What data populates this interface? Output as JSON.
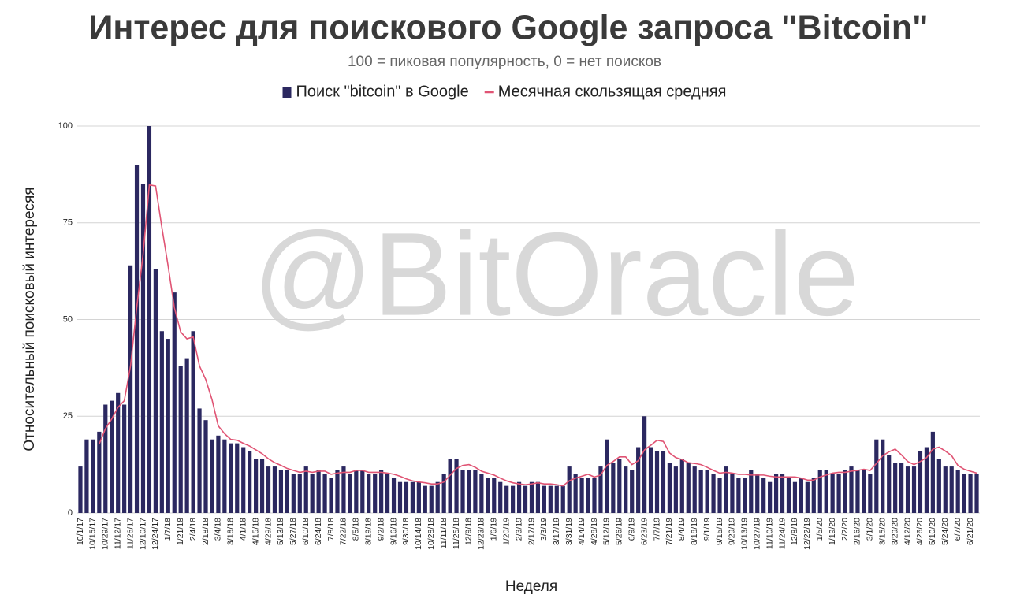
{
  "chart_data": {
    "type": "bar",
    "title": "Интерес для поискового Google запроса \"Bitcoin\"",
    "subtitle": "100 = пиковая популярность, 0 = нет поисков",
    "watermark": "@BitOracle",
    "x_label": "Неделя",
    "y_label": "Относительный поисковый интересяя",
    "ylim": [
      0,
      100
    ],
    "yticks": [
      0,
      25,
      50,
      75,
      100
    ],
    "grid": true,
    "legend": "top",
    "categories": [
      "10/1/17",
      null,
      "10/15/17",
      null,
      "10/29/17",
      null,
      "11/12/17",
      null,
      "11/26/17",
      null,
      "12/10/17",
      null,
      "12/24/17",
      null,
      "1/7/18",
      null,
      "1/21/18",
      null,
      "2/4/18",
      null,
      "2/18/18",
      null,
      "3/4/18",
      null,
      "3/18/18",
      null,
      "4/1/18",
      null,
      "4/15/18",
      null,
      "4/29/18",
      null,
      "5/13/18",
      null,
      "5/27/18",
      null,
      "6/10/18",
      null,
      "6/24/18",
      null,
      "7/8/18",
      null,
      "7/22/18",
      null,
      "8/5/18",
      null,
      "8/19/18",
      null,
      "9/2/18",
      null,
      "9/16/18",
      null,
      "9/30/18",
      null,
      "10/14/18",
      null,
      "10/28/18",
      null,
      "11/11/18",
      null,
      "11/25/18",
      null,
      "12/9/18",
      null,
      "12/23/18",
      null,
      "1/6/19",
      null,
      "1/20/19",
      null,
      "2/3/19",
      null,
      "2/17/19",
      null,
      "3/3/19",
      null,
      "3/17/19",
      null,
      "3/31/19",
      null,
      "4/14/19",
      null,
      "4/28/19",
      null,
      "5/12/19",
      null,
      "5/26/19",
      null,
      "6/9/19",
      null,
      "6/23/19",
      null,
      "7/7/19",
      null,
      "7/21/19",
      null,
      "8/4/19",
      null,
      "8/18/19",
      null,
      "9/1/19",
      null,
      "9/15/19",
      null,
      "9/29/19",
      null,
      "10/13/19",
      null,
      "10/27/19",
      null,
      "11/10/19",
      null,
      "11/24/19",
      null,
      "12/8/19",
      null,
      "12/22/19",
      null,
      "1/5/20",
      null,
      "1/19/20",
      null,
      "2/2/20",
      null,
      "2/16/20",
      null,
      "3/1/20",
      null,
      "3/15/20",
      null,
      "3/29/20",
      null,
      "4/12/20",
      null,
      "4/26/20",
      null,
      "5/10/20",
      null,
      "5/24/20",
      null,
      "6/7/20",
      null,
      "6/21/20",
      null
    ],
    "series": [
      {
        "name": "Поиск \"bitcoin\" в Google",
        "type": "bar",
        "color": "#2b2860",
        "values": [
          12,
          19,
          19,
          21,
          28,
          29,
          31,
          28,
          64,
          90,
          85,
          100,
          63,
          47,
          45,
          57,
          38,
          40,
          47,
          27,
          24,
          19,
          20,
          19,
          18,
          18,
          17,
          16,
          14,
          14,
          12,
          12,
          11,
          11,
          10,
          10,
          12,
          10,
          11,
          10,
          9,
          11,
          12,
          10,
          11,
          11,
          10,
          10,
          11,
          10,
          9,
          8,
          8,
          8,
          8,
          7,
          7,
          8,
          10,
          14,
          14,
          11,
          11,
          11,
          10,
          9,
          9,
          8,
          7,
          7,
          8,
          7,
          8,
          8,
          7,
          7,
          7,
          7,
          12,
          10,
          9,
          9,
          9,
          12,
          19,
          13,
          14,
          12,
          11,
          17,
          25,
          17,
          16,
          16,
          13,
          12,
          14,
          13,
          12,
          11,
          11,
          10,
          9,
          12,
          10,
          9,
          9,
          11,
          10,
          9,
          8,
          10,
          10,
          9,
          8,
          9,
          8,
          9,
          11,
          11,
          10,
          10,
          11,
          12,
          11,
          11,
          10,
          19,
          19,
          15,
          13,
          13,
          12,
          12,
          16,
          17,
          21,
          14,
          12,
          12,
          11,
          10,
          10,
          10
        ]
      },
      {
        "name": "Месячная скользящая средняя",
        "type": "line",
        "color": "#e05474",
        "values": [
          null,
          null,
          null,
          17.8,
          21.8,
          24.3,
          27.3,
          29,
          38,
          53.3,
          66.8,
          84.8,
          84.5,
          73.8,
          63.8,
          53,
          46.8,
          45,
          45.5,
          38,
          34.5,
          29.3,
          22.5,
          20.5,
          19,
          18.8,
          18,
          17.3,
          16.3,
          15.3,
          14,
          13,
          12.3,
          11.5,
          11,
          10.5,
          10.8,
          10.5,
          10.8,
          10.8,
          10,
          10.3,
          10.5,
          10.5,
          11,
          11,
          10.5,
          10.5,
          10.5,
          10.3,
          10,
          9.5,
          8.8,
          8.3,
          8,
          7.8,
          7.5,
          7.5,
          8,
          9.8,
          11.5,
          12.3,
          12.5,
          11.8,
          10.8,
          10.3,
          9.8,
          9,
          8.3,
          7.8,
          7.5,
          7.3,
          7.5,
          7.8,
          7.5,
          7.5,
          7.3,
          7,
          8.3,
          9,
          9.5,
          10,
          9.3,
          9.8,
          12.3,
          13.3,
          14.5,
          14.5,
          12.5,
          13.5,
          16.3,
          17.5,
          18.8,
          18.5,
          15.5,
          14.3,
          13.8,
          13,
          12.8,
          12.5,
          11.8,
          11,
          10.3,
          10.5,
          10.3,
          10,
          10,
          9.8,
          9.8,
          9.8,
          9.5,
          9.3,
          9.3,
          9.3,
          9.3,
          9,
          8.5,
          8.5,
          9.3,
          9.8,
          10.3,
          10.5,
          10.5,
          10.8,
          11,
          11.3,
          11,
          12.8,
          14.8,
          15.8,
          16.5,
          15,
          13.3,
          12.5,
          13.3,
          14.3,
          16.5,
          17,
          16,
          14.8,
          12.3,
          11.3,
          10.8,
          10.3
        ]
      }
    ]
  }
}
